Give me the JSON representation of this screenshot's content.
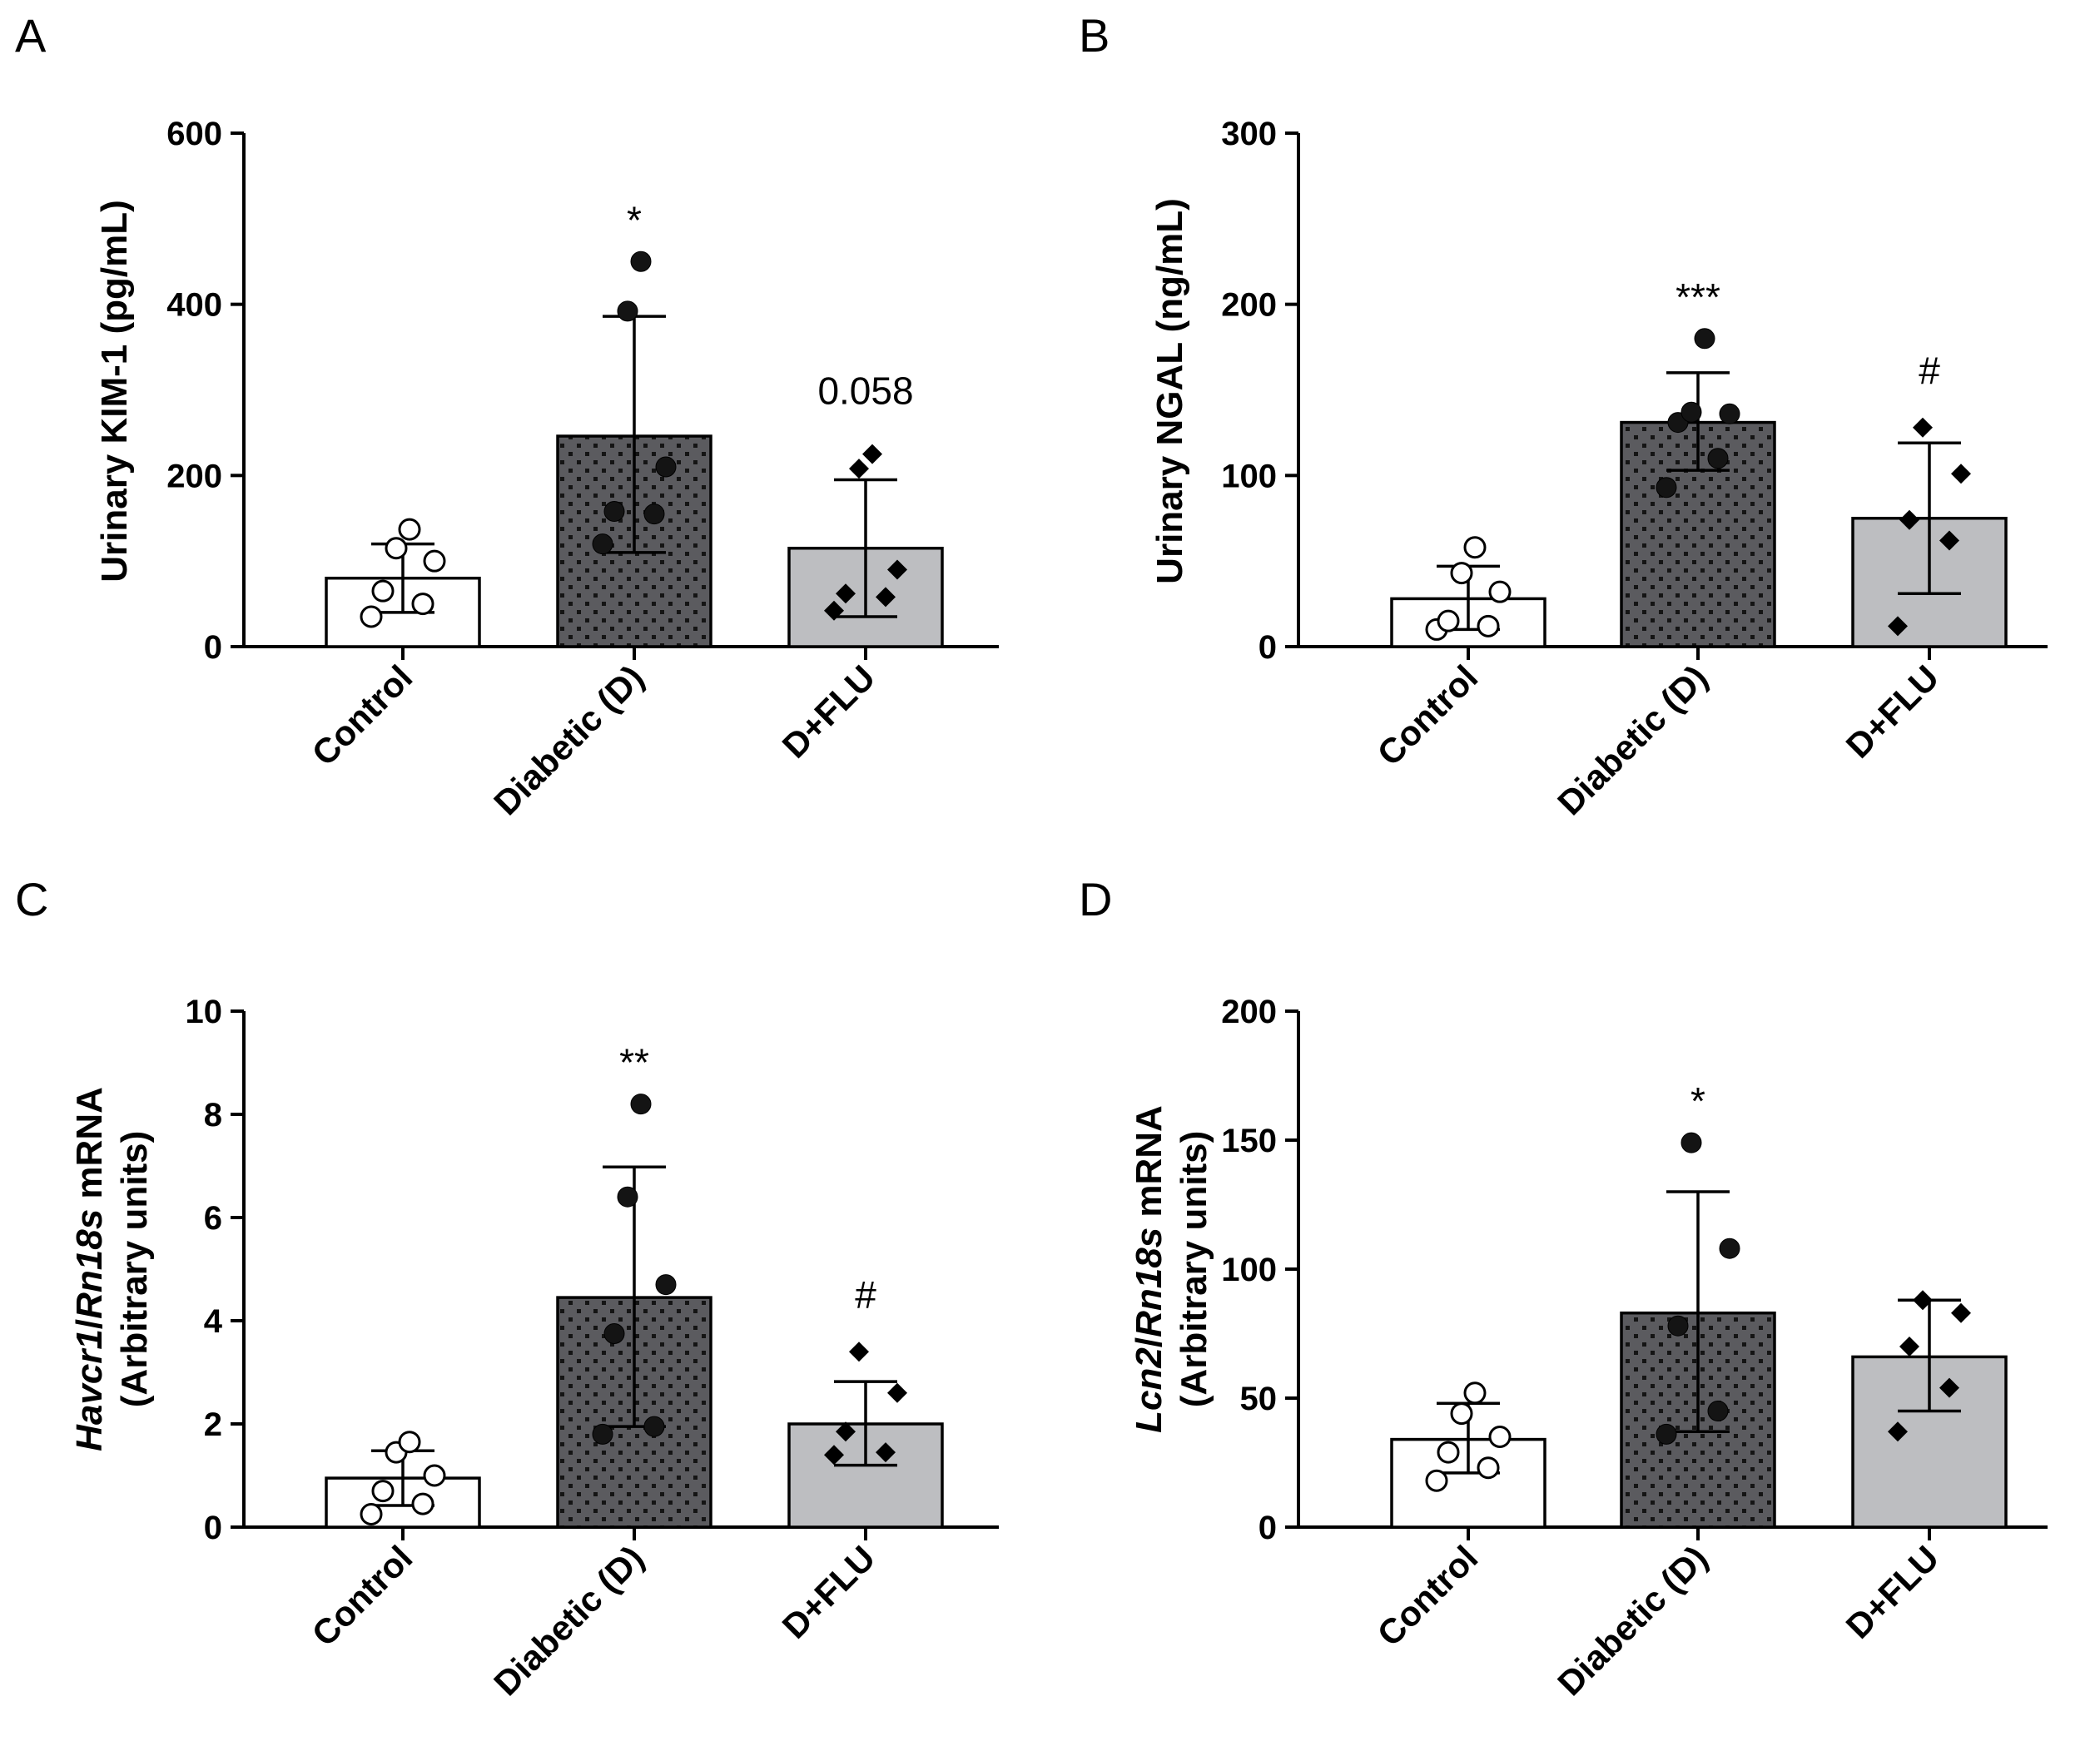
{
  "colors": {
    "control": "#ffffff",
    "diabetic": "#5b5b5f",
    "diabetic_dots": "#141414",
    "dflu": "#bdbec1",
    "ink": "#000000"
  },
  "chart_data": [
    {
      "panel": "A",
      "type": "bar",
      "categories": [
        "Control",
        "Diabetic (D)",
        "D+FLU"
      ],
      "ylabel": "Urinary KIM-1 (pg/mL)",
      "ylim": [
        0,
        600
      ],
      "yticks": [
        "0",
        "200",
        "400",
        "600"
      ],
      "tick_values": [
        0,
        200,
        400,
        600
      ],
      "series": [
        {
          "values": [
            80,
            246,
            115
          ],
          "error_low": [
            40,
            110,
            35
          ],
          "error_high": [
            120,
            386,
            195
          ],
          "points": [
            [
              35,
              50,
              65,
              100,
              115,
              137
            ],
            [
              120,
              155,
              158,
              210,
              392,
              450
            ],
            [
              42,
              58,
              62,
              90,
              208,
              225
            ]
          ],
          "annotations": [
            "",
            "*",
            "0.058"
          ]
        }
      ]
    },
    {
      "panel": "B",
      "type": "bar",
      "categories": [
        "Control",
        "Diabetic (D)",
        "D+FLU"
      ],
      "ylabel": "Urinary NGAL (ng/mL)",
      "ylim": [
        0,
        300
      ],
      "yticks": [
        "0",
        "100",
        "200",
        "300"
      ],
      "tick_values": [
        0,
        100,
        200,
        300
      ],
      "series": [
        {
          "values": [
            28,
            131,
            75
          ],
          "error_low": [
            10,
            103,
            31
          ],
          "error_high": [
            47,
            160,
            119
          ],
          "points": [
            [
              10,
              12,
              15,
              32,
              43,
              58
            ],
            [
              93,
              110,
              131,
              136,
              137,
              180
            ],
            [
              12,
              62,
              74,
              101,
              128
            ]
          ],
          "annotations": [
            "",
            "***",
            "#"
          ]
        }
      ]
    },
    {
      "panel": "C",
      "type": "bar",
      "categories": [
        "Control",
        "Diabetic (D)",
        "D+FLU"
      ],
      "ylabel_parts": [
        {
          "text": "Havcr1",
          "italic": true
        },
        {
          "text": "/",
          "italic": false
        },
        {
          "text": "Rn18s",
          "italic": true
        },
        {
          "text": " mRNA",
          "italic": false
        }
      ],
      "ylabel_line2": "(Arbitrary units)",
      "ylim": [
        0,
        10
      ],
      "yticks": [
        "0",
        "2",
        "4",
        "6",
        "8",
        "10"
      ],
      "tick_values": [
        0,
        2,
        4,
        6,
        8,
        10
      ],
      "series": [
        {
          "values": [
            0.95,
            4.45,
            2.0
          ],
          "error_low": [
            0.42,
            1.95,
            1.2
          ],
          "error_high": [
            1.48,
            6.98,
            2.82
          ],
          "points": [
            [
              0.25,
              0.45,
              0.7,
              1.0,
              1.45,
              1.65
            ],
            [
              1.8,
              1.95,
              3.75,
              4.7,
              6.4,
              8.2
            ],
            [
              1.4,
              1.45,
              1.85,
              2.6,
              3.4
            ]
          ],
          "annotations": [
            "",
            "**",
            "#"
          ]
        }
      ]
    },
    {
      "panel": "D",
      "type": "bar",
      "categories": [
        "Control",
        "Diabetic (D)",
        "D+FLU"
      ],
      "ylabel_parts": [
        {
          "text": "Lcn2",
          "italic": true
        },
        {
          "text": "/",
          "italic": false
        },
        {
          "text": "Rn18s",
          "italic": true
        },
        {
          "text": " mRNA",
          "italic": false
        }
      ],
      "ylabel_line2": "(Arbitrary units)",
      "ylim": [
        0,
        200
      ],
      "yticks": [
        "0",
        "50",
        "100",
        "150",
        "200"
      ],
      "tick_values": [
        0,
        50,
        100,
        150,
        200
      ],
      "series": [
        {
          "values": [
            34,
            83,
            66
          ],
          "error_low": [
            21,
            37,
            45
          ],
          "error_high": [
            48,
            130,
            88
          ],
          "points": [
            [
              18,
              23,
              29,
              35,
              44,
              52
            ],
            [
              36,
              45,
              78,
              108,
              149
            ],
            [
              37,
              54,
              70,
              83,
              88
            ]
          ],
          "annotations": [
            "",
            "*",
            ""
          ]
        }
      ]
    }
  ]
}
